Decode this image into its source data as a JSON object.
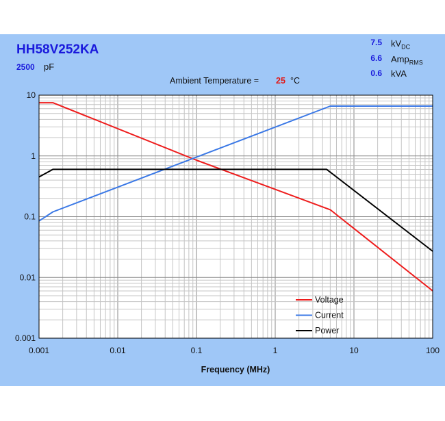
{
  "header": {
    "part_number": "HH58V252KA",
    "capacitance_value": "2500",
    "capacitance_unit": "pF",
    "ratings": [
      {
        "value": "7.5",
        "unit": "kV",
        "unit_sub": "DC"
      },
      {
        "value": "6.6",
        "unit": "Amp",
        "unit_sub": "RMS"
      },
      {
        "value": "0.6",
        "unit": "kVA",
        "unit_sub": ""
      }
    ],
    "ambient_label": "Ambient Temperature =",
    "ambient_value": "25",
    "ambient_unit": "°C"
  },
  "colors": {
    "panel": "#9fc7f7",
    "plot_bg": "#ffffff",
    "voltage": "#ee1c1c",
    "current": "#3a78e6",
    "power": "#000000",
    "title_blue": "#1a1adc",
    "accent_red": "#e01a1a"
  },
  "chart_data": {
    "type": "line",
    "title": "",
    "xlabel": "Frequency (MHz)",
    "ylabel": "",
    "xscale": "log",
    "yscale": "log",
    "xlim": [
      0.001,
      100
    ],
    "ylim": [
      0.001,
      10
    ],
    "xticks": [
      "0.001",
      "0.01",
      "0.1",
      "1",
      "10",
      "100"
    ],
    "yticks": [
      "0.001",
      "0.01",
      "0.1",
      "1",
      "10"
    ],
    "grid": true,
    "legend_position": "bottom-center",
    "series": [
      {
        "name": "Voltage",
        "color": "#ee1c1c",
        "points": [
          [
            0.001,
            7.5
          ],
          [
            0.0015,
            7.5
          ],
          [
            0.1,
            0.85
          ],
          [
            5,
            0.13
          ],
          [
            100,
            0.006
          ]
        ]
      },
      {
        "name": "Current",
        "color": "#3a78e6",
        "points": [
          [
            0.001,
            0.085
          ],
          [
            0.0015,
            0.12
          ],
          [
            5,
            6.6
          ],
          [
            100,
            6.6
          ]
        ]
      },
      {
        "name": "Power",
        "color": "#000000",
        "points": [
          [
            0.001,
            0.45
          ],
          [
            0.0015,
            0.6
          ],
          [
            4.5,
            0.6
          ],
          [
            6,
            0.45
          ],
          [
            100,
            0.027
          ]
        ]
      }
    ]
  }
}
